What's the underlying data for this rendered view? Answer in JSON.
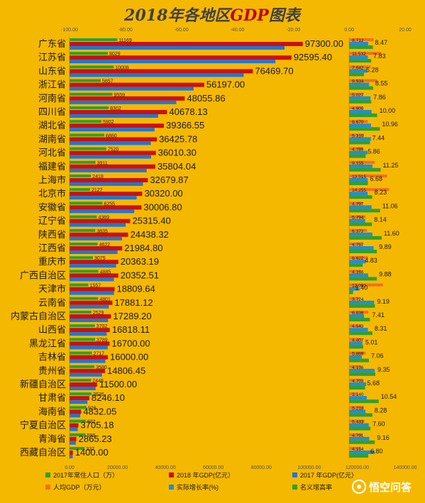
{
  "chart_data": {
    "type": "bar",
    "title_prefix": "2018",
    "title_mid": "年各地区",
    "title_gdp": "GDP",
    "title_suffix": "图表",
    "colors": {
      "background": "#f5b800",
      "title": "#404040",
      "title_gdp": "#c00000",
      "population": "#2ca02c",
      "gdp2018": "#cc1010",
      "gdp2017": "#1f77d4",
      "per_capita": "#f07020",
      "real_growth": "#1f8fd0",
      "nominal_growth": "#30a030"
    },
    "top_axis": {
      "min": -100,
      "max": 20,
      "ticks": [
        "-100.00",
        "-80.00",
        "-60.00",
        "-40.00",
        "-20.00",
        "0.00",
        "20.00"
      ]
    },
    "bottom_axis": {
      "min": 0,
      "max": 140000,
      "ticks": [
        "0.00",
        "20000.00",
        "40000.00",
        "60000.00",
        "80000.00",
        "100000.00",
        "120000.00",
        "140000.00"
      ]
    },
    "legend": [
      {
        "label": "2017年常住人口（万）",
        "color": "#2ca02c"
      },
      {
        "label": "2018 年GDP(亿元）",
        "color": "#cc1010"
      },
      {
        "label": "2017 年GDP(亿元）",
        "color": "#1f77d4"
      },
      {
        "label": "人均GDP（万元）",
        "color": "#f07020"
      },
      {
        "label": "实际增长率(%)",
        "color": "#1f8fd0"
      },
      {
        "label": "名义增高率",
        "color": "#30a030"
      }
    ],
    "watermark": "悟空问答",
    "categories": [
      "广东省",
      "江苏省",
      "山东省",
      "浙江省",
      "河南省",
      "四川省",
      "湖北省",
      "湖南省",
      "河北省",
      "福建省",
      "上海市",
      "北京市",
      "安徽省",
      "辽宁省",
      "陕西省",
      "江西省",
      "重庆市",
      "广西自治区",
      "天津市",
      "云南省",
      "内蒙古自治区",
      "山西省",
      "黑龙江省",
      "吉林省",
      "贵州省",
      "新疆自治区",
      "甘肃省",
      "海南省",
      "宁夏自治区",
      "青海省",
      "西藏自治区"
    ],
    "series": [
      {
        "name": "2017年常住人口（万）",
        "axis": "top",
        "values": [
          11169,
          8029,
          10006,
          5657,
          9559,
          8302,
          5902,
          6860,
          7520,
          3911,
          2418,
          2127,
          6255,
          4369,
          3835,
          4622,
          3075,
          4885,
          1557,
          4801,
          2529,
          3702,
          3789,
          2717,
          3580,
          2445,
          2626,
          926,
          682,
          598,
          337
        ]
      },
      {
        "name": "2018 年GDP(亿元）",
        "axis": "bottom",
        "values": [
          97300.0,
          92595.4,
          76469.7,
          56197.0,
          48055.86,
          40678.13,
          39366.55,
          36425.78,
          36010.3,
          35804.04,
          32679.87,
          30320.0,
          30006.8,
          25315.4,
          24438.32,
          21984.8,
          20363.19,
          20352.51,
          18809.64,
          17881.12,
          17289.2,
          16818.11,
          16700.0,
          16000.0,
          14806.45,
          11500.0,
          8246.1,
          4832.05,
          3705.18,
          2865.23,
          1400.0
        ]
      },
      {
        "name": "2017 年GDP(亿元）",
        "axis": "bottom",
        "values": [
          89705,
          85870,
          72634,
          51768,
          44553,
          36980,
          35478,
          33903,
          34016,
          32182,
          30633,
          28015,
          27018,
          23409,
          21899,
          20006,
          19425,
          18523,
          18550,
          16376,
          16096,
          15528,
          15903,
          14945,
          13540,
          10882,
          7460,
          4462,
          3444,
          2625,
          1311
        ]
      },
      {
        "name": "人均GDP（万元）",
        "axis": "top",
        "values": [
          8.712,
          11.532,
          7.642,
          9.934,
          5.027,
          4.9,
          6.67,
          5.31,
          4.789,
          9.155,
          13.515,
          14.255,
          4.797,
          5.794,
          6.372,
          4.757,
          6.622,
          4.166,
          12.081,
          3.724,
          6.836,
          4.543,
          4.407,
          5.889,
          4.136,
          4.703,
          3.14,
          5.218,
          5.433,
          4.791,
          4.154
        ]
      },
      {
        "name": "实际增长率(%)",
        "axis": "top",
        "values": [
          6.8,
          6.7,
          6.4,
          7.1,
          7.6,
          8.0,
          7.8,
          7.8,
          6.6,
          8.3,
          6.6,
          6.6,
          8.0,
          5.7,
          8.3,
          8.7,
          6.0,
          6.8,
          3.6,
          8.9,
          5.3,
          6.7,
          4.7,
          4.5,
          9.1,
          6.1,
          6.3,
          5.8,
          7.0,
          7.2,
          9.1
        ]
      },
      {
        "name": "名义增高率",
        "axis": "top",
        "values": [
          8.47,
          7.83,
          5.28,
          8.55,
          7.86,
          10.0,
          10.96,
          7.44,
          5.86,
          11.25,
          6.68,
          8.23,
          11.06,
          8.14,
          11.6,
          9.89,
          4.83,
          9.88,
          1.4,
          9.19,
          7.41,
          8.31,
          5.01,
          7.06,
          9.35,
          5.68,
          10.54,
          8.28,
          7.6,
          9.16,
          6.8
        ]
      }
    ]
  }
}
